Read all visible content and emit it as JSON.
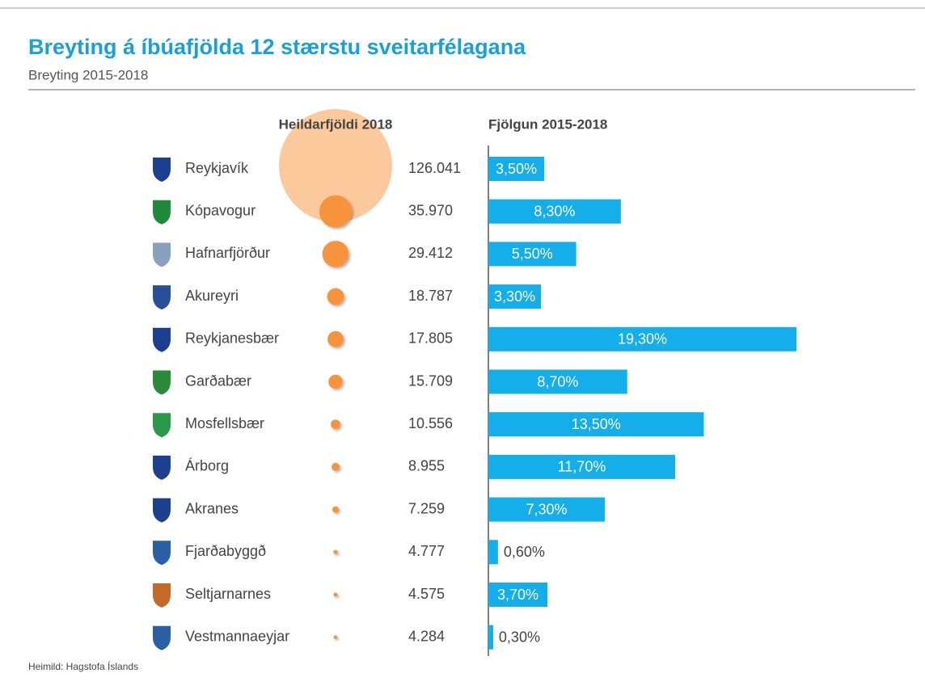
{
  "chart_data": {
    "type": "bar",
    "title": "Breyting á íbúafjölda 12 stærstu sveitarfélagana",
    "subtitle": "Breyting 2015-2018",
    "source": "Heimild: Hagstofa Íslands",
    "categories": [
      "Reykjavík",
      "Kópavogur",
      "Hafnarfjörður",
      "Akureyri",
      "Reykjanesbær",
      "Garðabær",
      "Mosfellsbær",
      "Árborg",
      "Akranes",
      "Fjarðabyggð",
      "Seltjarnarnes",
      "Vestmannaeyjar"
    ],
    "series": [
      {
        "name": "Heildarfjöldi 2018",
        "color": "#f7943a",
        "values": [
          126041,
          35970,
          29412,
          18787,
          17805,
          15709,
          10556,
          8955,
          7259,
          4777,
          4575,
          4284
        ],
        "value_labels": [
          "126.041",
          "35.970",
          "29.412",
          "18.787",
          "17.805",
          "15.709",
          "10.556",
          "8.955",
          "7.259",
          "4.777",
          "4.575",
          "4.284"
        ]
      },
      {
        "name": "Fjölgun 2015-2018",
        "color": "#14aeea",
        "values": [
          3.5,
          8.3,
          5.5,
          3.3,
          19.3,
          8.7,
          13.5,
          11.7,
          7.3,
          0.6,
          3.7,
          0.3
        ],
        "value_labels": [
          "3,50%",
          "8,30%",
          "5,50%",
          "3,30%",
          "19,30%",
          "8,70%",
          "13,50%",
          "11,70%",
          "7,30%",
          "0,60%",
          "3,70%",
          "0,30%"
        ]
      }
    ]
  }
}
